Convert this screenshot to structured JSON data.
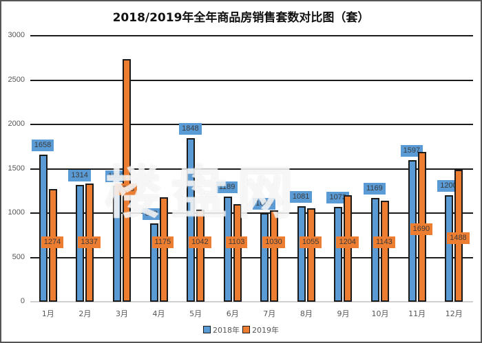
{
  "chart_data": {
    "type": "bar",
    "title": "2018/2019年全年商品房销售套数对比图（套）",
    "xlabel": "",
    "ylabel": "",
    "categories": [
      "1月",
      "2月",
      "3月",
      "4月",
      "5月",
      "6月",
      "7月",
      "8月",
      "9月",
      "10月",
      "11月",
      "12月"
    ],
    "series": [
      {
        "name": "2018年",
        "color": "#5b9bd5",
        "values": [
          1658,
          1314,
          1307,
          882,
          1848,
          1189,
          1003,
          1081,
          1073,
          1169,
          1597,
          1200
        ]
      },
      {
        "name": "2019年",
        "color": "#ed7d31",
        "values": [
          1274,
          1337,
          2733,
          1175,
          1042,
          1103,
          1030,
          1055,
          1204,
          1143,
          1690,
          1488
        ]
      }
    ],
    "ylim": [
      0,
      3000
    ],
    "yticks": [
      0,
      500,
      1000,
      1500,
      2000,
      2500,
      3000
    ],
    "grid": true,
    "legend_position": "bottom",
    "data_labels": true
  },
  "watermark": "楼盘网"
}
